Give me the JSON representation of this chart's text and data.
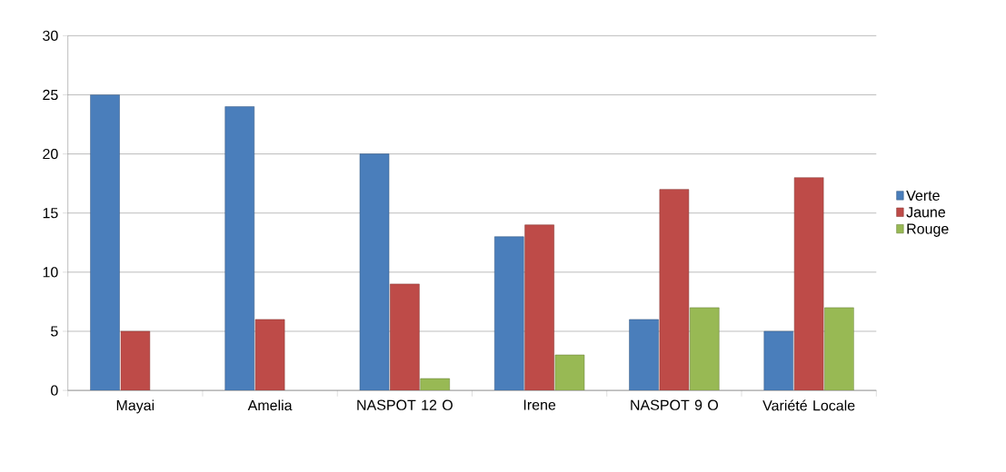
{
  "chart_data": {
    "type": "bar",
    "categories": [
      "Mayai",
      "Amelia",
      "NASPOT 12 O",
      "Irene",
      "NASPOT 9 O",
      "Variété Locale"
    ],
    "series": [
      {
        "name": "Verte",
        "color": "#4a7ebb",
        "values": [
          25,
          24,
          20,
          13,
          6,
          5
        ]
      },
      {
        "name": "Jaune",
        "color": "#be4b48",
        "values": [
          5,
          6,
          9,
          14,
          17,
          18
        ]
      },
      {
        "name": "Rouge",
        "color": "#98b954",
        "values": [
          null,
          null,
          1,
          3,
          7,
          7
        ]
      }
    ],
    "ylim": [
      0,
      30
    ],
    "yticks": [
      0,
      5,
      10,
      15,
      20,
      25,
      30
    ],
    "grid": "y",
    "legend": "right"
  }
}
